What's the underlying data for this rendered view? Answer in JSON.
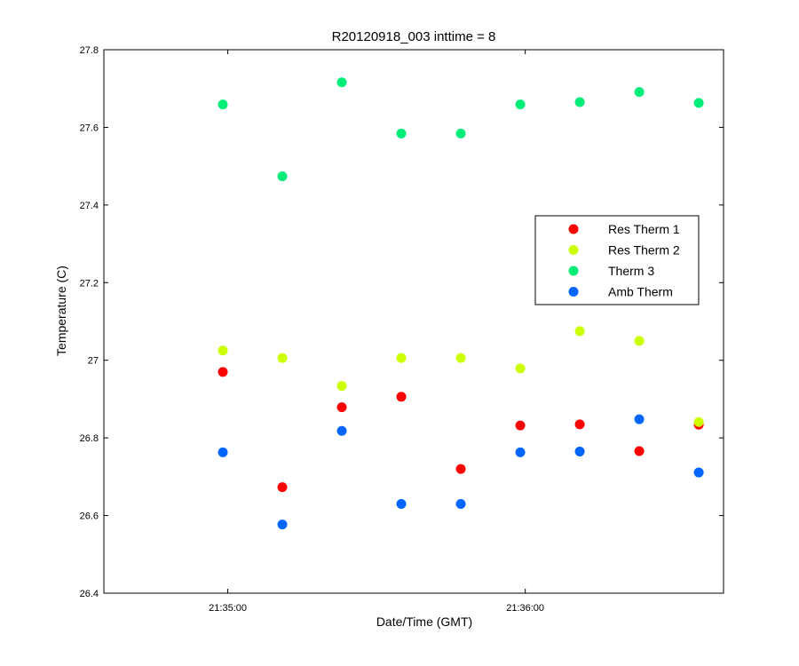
{
  "chart_data": {
    "type": "scatter",
    "title": "R20120918_003 inttime = 8",
    "xlabel": "Date/Time (GMT)",
    "ylabel": "Temperature (C)",
    "ylim": [
      26.4,
      27.8
    ],
    "y_ticks": [
      "26.4",
      "26.6",
      "26.8",
      "27",
      "27.2",
      "27.4",
      "27.6",
      "27.8"
    ],
    "x_time_range": [
      "21:34:35",
      "21:36:40"
    ],
    "x_ticks": [
      "21:35:00",
      "21:36:00"
    ],
    "x": [
      "21:34:59",
      "21:35:11",
      "21:35:23",
      "21:35:35",
      "21:35:47",
      "21:35:59",
      "21:36:11",
      "21:36:23",
      "21:36:35"
    ],
    "grid": false,
    "legend_position": "right",
    "series": [
      {
        "name": "Res Therm 1",
        "color": "#ff0000",
        "values": [
          26.97,
          26.673,
          26.879,
          26.906,
          26.72,
          26.832,
          26.835,
          26.766,
          26.834
        ]
      },
      {
        "name": "Res Therm 2",
        "color": "#ccff00",
        "values": [
          27.025,
          27.006,
          26.934,
          27.006,
          27.006,
          26.979,
          27.075,
          27.05,
          26.841
        ]
      },
      {
        "name": "Therm 3",
        "color": "#00ee77",
        "values": [
          27.659,
          27.474,
          27.716,
          27.584,
          27.584,
          27.659,
          27.665,
          27.691,
          27.663
        ]
      },
      {
        "name": "Amb Therm",
        "color": "#0066ff",
        "values": [
          26.763,
          26.577,
          26.818,
          26.63,
          26.63,
          26.763,
          26.765,
          26.848,
          26.711
        ]
      }
    ]
  }
}
